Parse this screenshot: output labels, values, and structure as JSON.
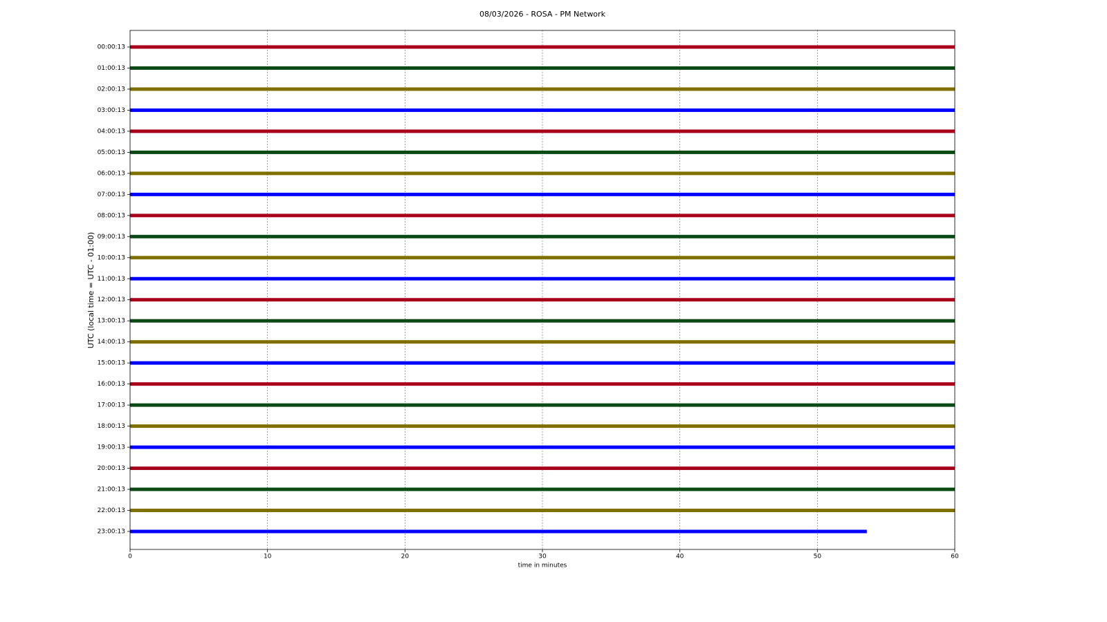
{
  "chart_data": {
    "type": "helicorder",
    "title": "08/03/2026 - ROSA - PM Network",
    "xlabel": "time in minutes",
    "ylabel": "UTC (local time = UTC - 01:00)",
    "categories": [
      "00:00:13",
      "01:00:13",
      "02:00:13",
      "03:00:13",
      "04:00:13",
      "05:00:13",
      "06:00:13",
      "07:00:13",
      "08:00:13",
      "09:00:13",
      "10:00:13",
      "11:00:13",
      "12:00:13",
      "13:00:13",
      "14:00:13",
      "15:00:13",
      "16:00:13",
      "17:00:13",
      "18:00:13",
      "19:00:13",
      "20:00:13",
      "21:00:13",
      "22:00:13",
      "23:00:13"
    ],
    "values": [
      60,
      60,
      60,
      60,
      60,
      60,
      60,
      60,
      60,
      60,
      60,
      60,
      60,
      60,
      60,
      60,
      60,
      60,
      60,
      60,
      60,
      60,
      60,
      53.6
    ],
    "colors": [
      "#a8001a",
      "#0b4a14",
      "#7f6f00",
      "#0000ff"
    ],
    "xlim": [
      0,
      60
    ],
    "xticks": [
      0,
      10,
      20,
      30,
      40,
      50,
      60
    ],
    "grid": true
  }
}
